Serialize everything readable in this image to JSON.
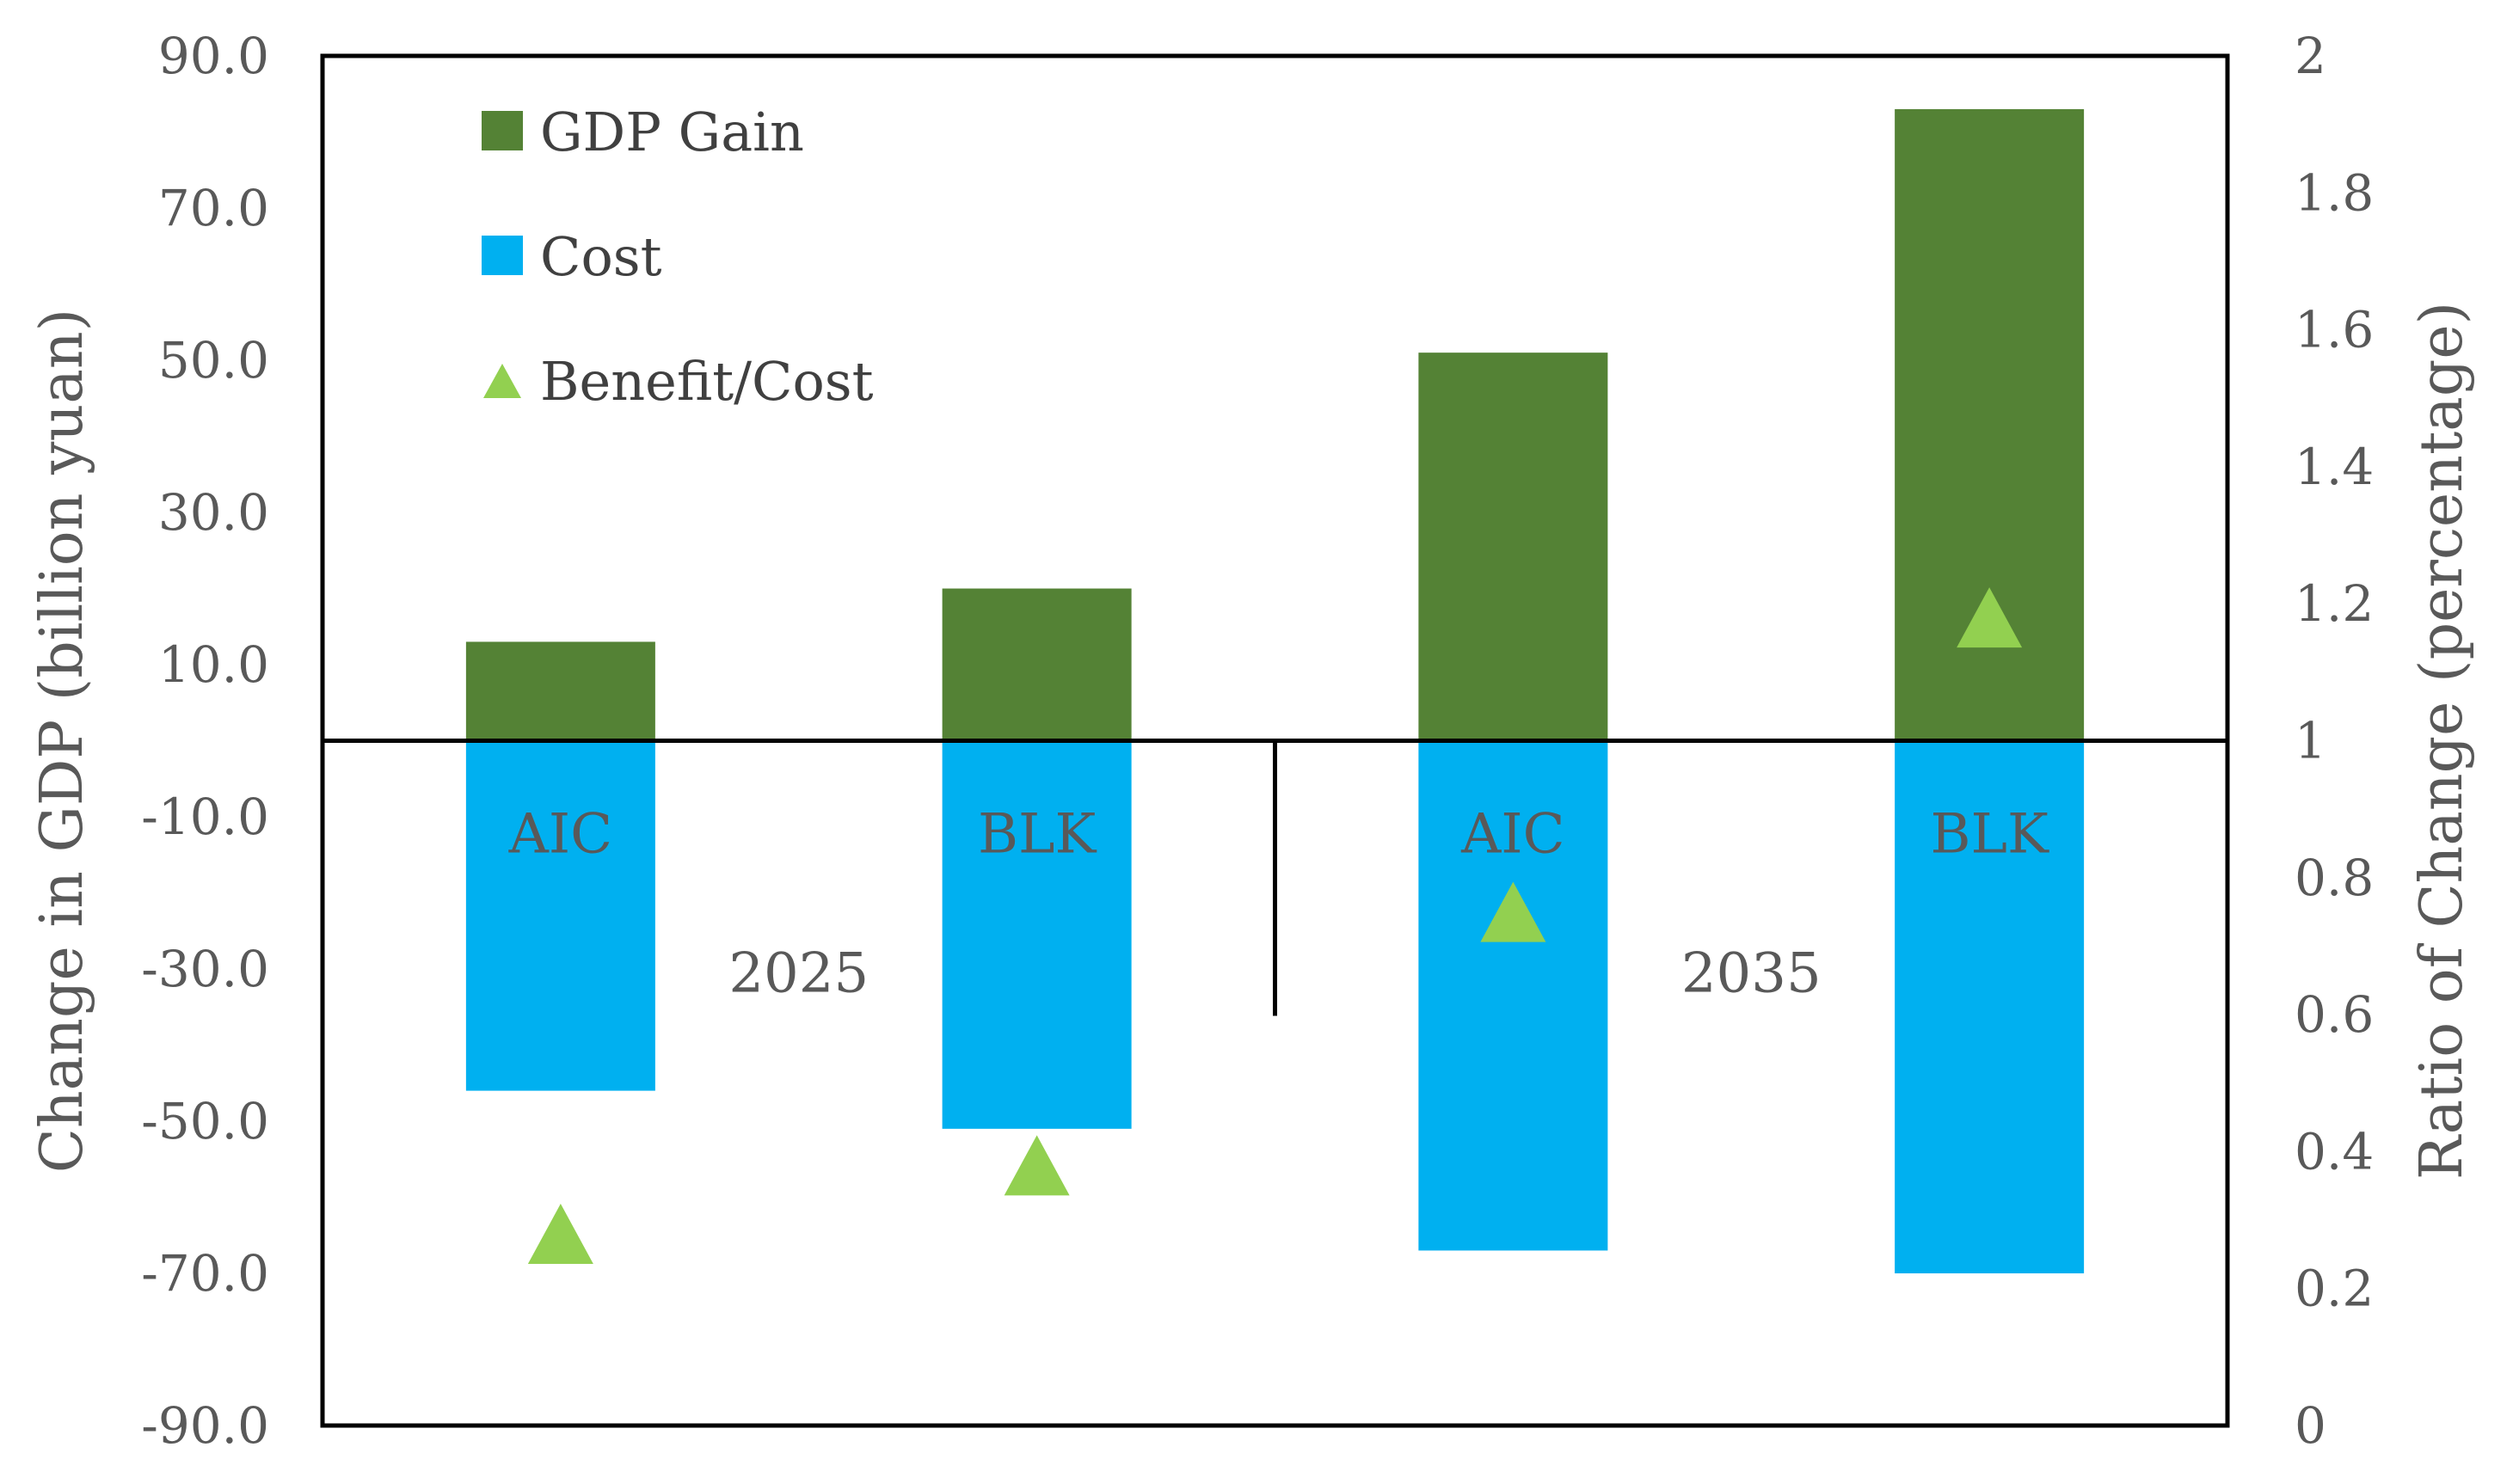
{
  "chart_data": {
    "type": "bar",
    "categories": [
      "AIC",
      "BLK",
      "AIC",
      "BLK"
    ],
    "groups": [
      {
        "label": "2025",
        "categories": [
          "AIC",
          "BLK"
        ]
      },
      {
        "label": "2035",
        "categories": [
          "AIC",
          "BLK"
        ]
      }
    ],
    "series": [
      {
        "name": "GDP Gain",
        "axis": "left",
        "kind": "bar",
        "color": "#548235",
        "values": [
          13.0,
          20.0,
          51.0,
          83.0
        ]
      },
      {
        "name": "Cost",
        "axis": "left",
        "kind": "bar",
        "color": "#00B0F0",
        "values": [
          -46.0,
          -51.0,
          -67.0,
          -70.0
        ]
      },
      {
        "name": "Benefit/Cost",
        "axis": "right",
        "kind": "marker",
        "marker": "triangle",
        "color": "#92D050",
        "values": [
          0.28,
          0.38,
          0.75,
          1.18
        ]
      }
    ],
    "ylabel": "Change in GDP  (billion yuan)",
    "y2label": "Ratio of Change (percentage)",
    "ylim": [
      -90,
      90
    ],
    "y2lim": [
      0,
      2
    ],
    "yticks": [
      "90.0",
      "70.0",
      "50.0",
      "30.0",
      "10.0",
      "-10.0",
      "-30.0",
      "-50.0",
      "-70.0",
      "-90.0"
    ],
    "y2ticks": [
      "2",
      "1.8",
      "1.6",
      "1.4",
      "1.2",
      "1",
      "0.8",
      "0.6",
      "0.4",
      "0.2",
      "0"
    ],
    "legend": [
      "GDP Gain",
      "Cost",
      "Benefit/Cost"
    ],
    "legend_position": "top-left",
    "grid": false
  }
}
